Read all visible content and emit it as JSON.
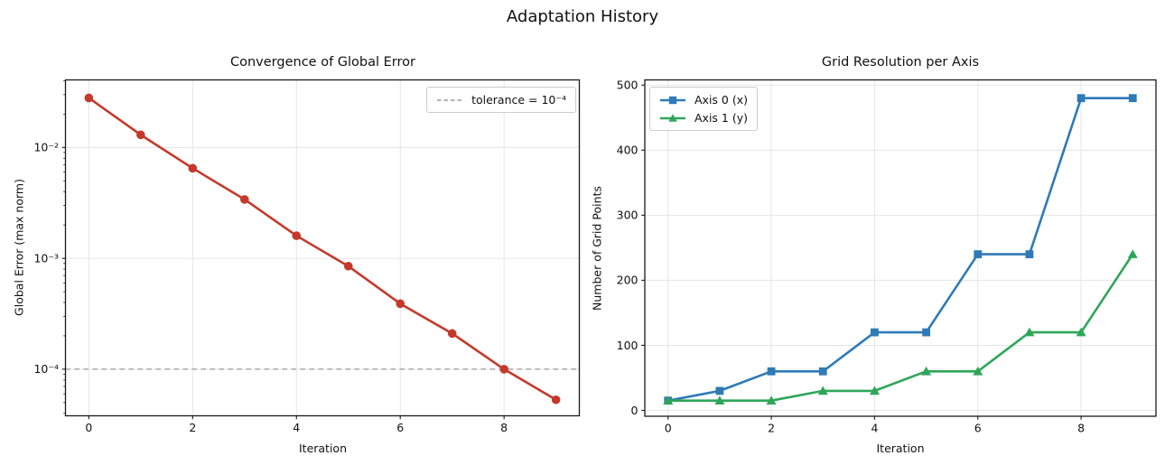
{
  "figure": {
    "suptitle": "Adaptation History",
    "background": "#ffffff"
  },
  "colors": {
    "error_line": "#c4392b",
    "tolerance_line": "#999999",
    "axis0_line": "#2f7ab7",
    "axis1_line": "#2ea65a",
    "grid": "#e5e5e5",
    "spine": "#1a1a1a",
    "text": "#111111"
  },
  "chart_data": [
    {
      "type": "line",
      "title": "Convergence of Global Error",
      "xlabel": "Iteration",
      "ylabel": "Global Error (max norm)",
      "yscale": "log",
      "grid": true,
      "legend_position": "upper right",
      "x": [
        0,
        1,
        2,
        3,
        4,
        5,
        6,
        7,
        8,
        9
      ],
      "series": [
        {
          "name": "Global Error",
          "marker": "circle",
          "color_key": "error_line",
          "values": [
            0.028,
            0.013,
            0.0065,
            0.0034,
            0.0016,
            0.00085,
            0.00039,
            0.00021,
            0.0001,
            5.3e-05
          ]
        }
      ],
      "tolerance_line": {
        "value": 0.0001,
        "label": "tolerance = 10⁻⁴",
        "color_key": "tolerance_line"
      },
      "xticks": [
        0,
        2,
        4,
        6,
        8
      ],
      "yticks": [
        0.01,
        0.001,
        0.0001
      ],
      "ytick_labels": [
        "10⁻²",
        "10⁻³",
        "10⁻⁴"
      ],
      "xlim": [
        -0.45,
        9.45
      ],
      "ylim": [
        3.8e-05,
        0.0407
      ]
    },
    {
      "type": "line",
      "title": "Grid Resolution per Axis",
      "xlabel": "Iteration",
      "ylabel": "Number of Grid Points",
      "yscale": "linear",
      "grid": true,
      "legend_position": "upper left",
      "x": [
        0,
        1,
        2,
        3,
        4,
        5,
        6,
        7,
        8,
        9
      ],
      "series": [
        {
          "name": "Axis 0 (x)",
          "marker": "square",
          "color_key": "axis0_line",
          "values": [
            15,
            30,
            60,
            60,
            120,
            120,
            240,
            240,
            480,
            480
          ]
        },
        {
          "name": "Axis 1 (y)",
          "marker": "triangle",
          "color_key": "axis1_line",
          "values": [
            15,
            15,
            15,
            30,
            30,
            60,
            60,
            120,
            120,
            240
          ]
        }
      ],
      "xticks": [
        0,
        2,
        4,
        6,
        8
      ],
      "yticks": [
        0,
        100,
        200,
        300,
        400,
        500
      ],
      "ytick_labels": [
        "0",
        "100",
        "200",
        "300",
        "400",
        "500"
      ],
      "xlim": [
        -0.45,
        9.45
      ],
      "ylim": [
        -9,
        508
      ]
    }
  ]
}
